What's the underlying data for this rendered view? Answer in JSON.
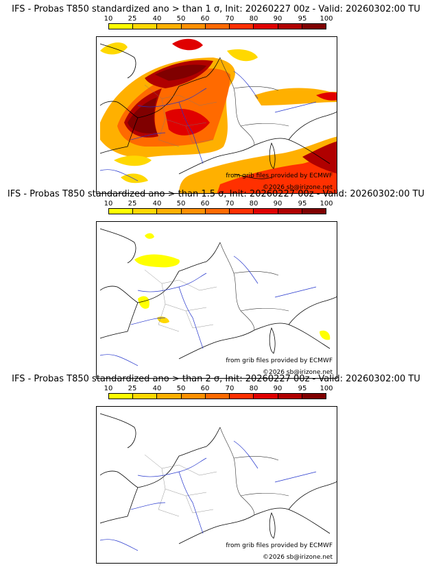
{
  "colorbar": {
    "labels": [
      "10",
      "25",
      "40",
      "50",
      "60",
      "70",
      "80",
      "90",
      "95",
      "100"
    ],
    "colors": [
      "#ffff00",
      "#ffd800",
      "#ffb000",
      "#ff9000",
      "#ff6a00",
      "#ff3000",
      "#e00000",
      "#b00000",
      "#800000"
    ]
  },
  "panels": [
    {
      "title": "IFS - Probas T850  standardized ano > than 1 σ, Init: 20260227 00z - Valid: 20260302:00 TU",
      "source_credit": "from grib files provided by ECMWF",
      "copyright": "©2026 sb@irizone.net"
    },
    {
      "title": "IFS - Probas T850  standardized ano > than 1.5 σ, Init: 20260227 00z - Valid: 20260302:00 TU",
      "source_credit": "from grib files provided by ECMWF",
      "copyright": "©2026 sb@irizone.net"
    },
    {
      "title": "IFS - Probas T850  standardized ano > than 2 σ, Init: 20260227 00z - Valid: 20260302:00 TU",
      "source_credit": "from grib files provided by ECMWF",
      "copyright": "©2026 sb@irizone.net"
    }
  ]
}
